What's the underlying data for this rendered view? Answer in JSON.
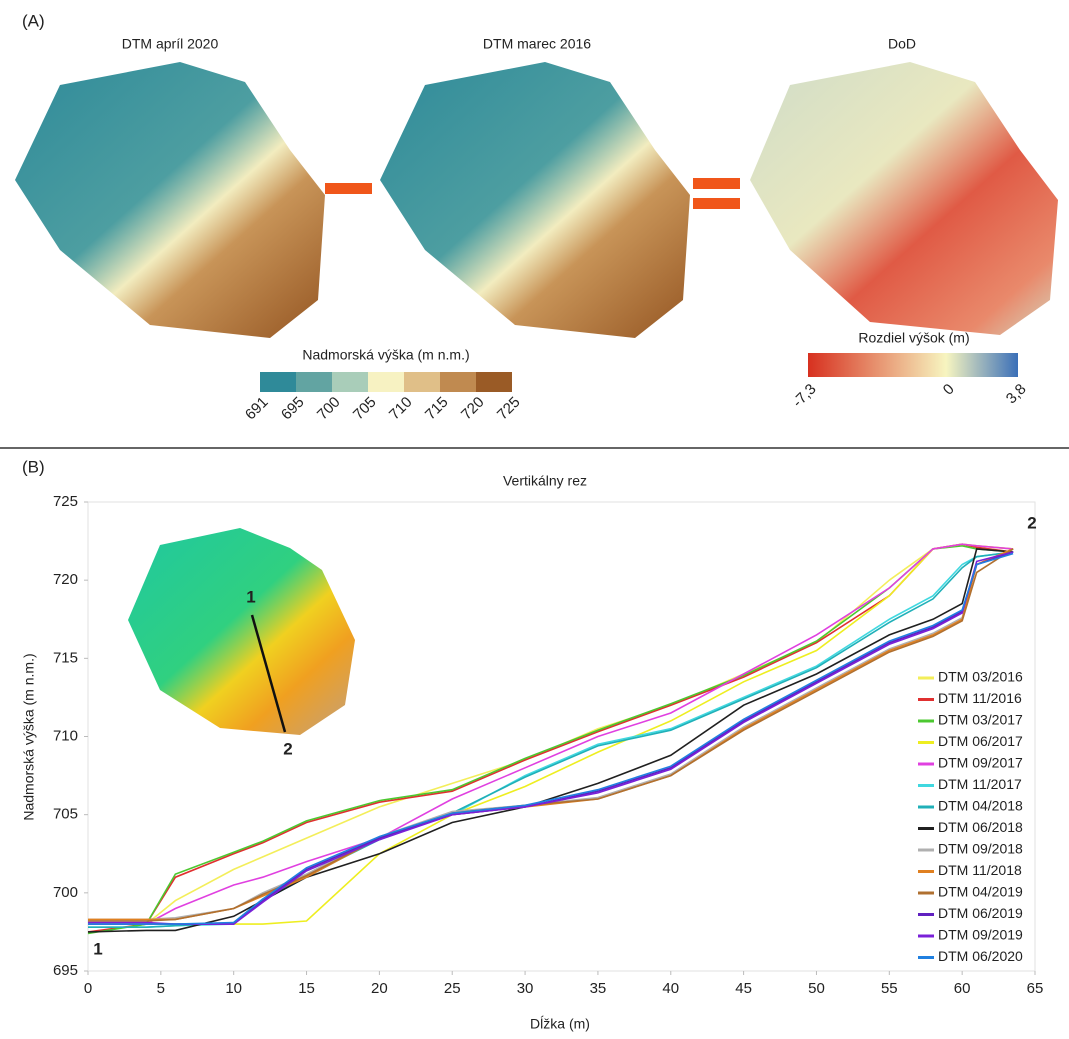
{
  "panel_a": {
    "label": "(A)",
    "maps": [
      "DTM apríl 2020",
      "DTM marec 2016",
      "DoD"
    ],
    "elevation_colorbar": {
      "title": "Nadmorská výška (m n.m.)",
      "colors": [
        "#2f8a99",
        "#62a4a2",
        "#a9cdb9",
        "#f7f2c2",
        "#e0bf88",
        "#c08a50",
        "#9a5b26"
      ],
      "ticks": [
        691,
        695,
        700,
        705,
        710,
        715,
        720,
        725
      ]
    },
    "difference_colorbar": {
      "title": "Rozdiel výšok (m)",
      "colors": [
        "#d7301f",
        "#f7f5c0",
        "#3a6fb8"
      ],
      "ticks": [
        {
          "value": -7.3,
          "label": "-7,3"
        },
        0,
        {
          "value": 3.8,
          "label": "3,8"
        }
      ]
    }
  },
  "panel_b": {
    "label": "(B)",
    "inset_labels": [
      "1",
      "2"
    ]
  },
  "chart_data": {
    "type": "line",
    "title": "Vertikálny rez",
    "x_label": "Dĺžka (m)",
    "y_label": "Nadmorská výška (m n.m.)",
    "xlim": [
      0,
      65
    ],
    "xticks": [
      0,
      5,
      10,
      15,
      20,
      25,
      30,
      35,
      40,
      45,
      50,
      55,
      60,
      65
    ],
    "ylim": [
      695,
      725
    ],
    "yticks": [
      695,
      700,
      705,
      710,
      715,
      720,
      725
    ],
    "annotations": [
      "1",
      "2"
    ],
    "x": [
      0,
      4,
      6,
      10,
      12,
      15,
      20,
      25,
      30,
      35,
      40,
      45,
      50,
      55,
      58,
      60,
      61,
      63.5
    ],
    "series": [
      {
        "name": "DTM 03/2016",
        "color": "#f3ee5a",
        "values": [
          698,
          698,
          699.5,
          701.5,
          702.3,
          703.5,
          705.5,
          707,
          708.5,
          710.5,
          712,
          714,
          716,
          720,
          722,
          722.3,
          722.2,
          722
        ]
      },
      {
        "name": "DTM 11/2016",
        "color": "#e03030",
        "values": [
          697.5,
          698,
          701,
          702.5,
          703.2,
          704.5,
          705.8,
          706.5,
          708.5,
          710.3,
          712,
          713.8,
          716,
          719,
          722,
          722.3,
          722.1,
          721.8
        ]
      },
      {
        "name": "DTM 03/2017",
        "color": "#4cc830",
        "values": [
          697.4,
          698,
          701.2,
          702.6,
          703.3,
          704.6,
          705.9,
          706.6,
          708.6,
          710.4,
          712.1,
          713.9,
          716.1,
          719.5,
          722,
          722.2,
          722,
          721.8
        ]
      },
      {
        "name": "DTM 06/2017",
        "color": "#eeee20",
        "values": [
          698,
          698,
          698,
          698,
          698,
          698.2,
          702.5,
          705,
          706.8,
          709,
          711,
          713.5,
          715.5,
          719,
          722,
          722.3,
          722.2,
          722
        ]
      },
      {
        "name": "DTM 09/2017",
        "color": "#e040e0",
        "values": [
          698,
          698,
          699,
          700.5,
          701,
          702,
          703.5,
          706,
          708,
          710,
          711.5,
          714,
          716.5,
          719.5,
          722,
          722.3,
          722.2,
          722
        ]
      },
      {
        "name": "DTM 11/2017",
        "color": "#40d8e0",
        "values": [
          697.8,
          697.8,
          697.9,
          698,
          699.5,
          701,
          703.5,
          705,
          707.5,
          709.5,
          710.5,
          712.5,
          714.5,
          717.5,
          719,
          721,
          721.5,
          721.8
        ]
      },
      {
        "name": "DTM 04/2018",
        "color": "#20b0b8",
        "values": [
          697.8,
          697.8,
          697.9,
          698.1,
          699.6,
          701.1,
          703.4,
          705.1,
          707.4,
          709.4,
          710.4,
          712.4,
          714.4,
          717.3,
          718.8,
          720.8,
          721.5,
          721.8
        ]
      },
      {
        "name": "DTM 06/2018",
        "color": "#202020",
        "values": [
          697.5,
          697.6,
          697.6,
          698.5,
          699.5,
          701,
          702.5,
          704.5,
          705.5,
          707,
          708.8,
          712,
          714,
          716.5,
          717.5,
          718.5,
          722,
          721.8
        ]
      },
      {
        "name": "DTM 09/2018",
        "color": "#b0b0b0",
        "values": [
          698.3,
          698.3,
          698.4,
          699,
          700,
          701.2,
          703.6,
          705.2,
          705.6,
          706.1,
          707.6,
          710.6,
          713.1,
          715.6,
          716.6,
          717.6,
          721,
          722
        ]
      },
      {
        "name": "DTM 11/2018",
        "color": "#e08020",
        "values": [
          698.3,
          698.3,
          698.3,
          699,
          699.8,
          701,
          703.5,
          705,
          705.5,
          706,
          707.5,
          710.5,
          713,
          715.5,
          716.5,
          717.5,
          721,
          722
        ]
      },
      {
        "name": "DTM 04/2019",
        "color": "#b07030",
        "values": [
          698.2,
          698.2,
          698.3,
          699,
          699.9,
          701.1,
          703.5,
          705.1,
          705.6,
          706,
          707.5,
          710.4,
          712.9,
          715.4,
          716.4,
          717.4,
          720.5,
          722
        ]
      },
      {
        "name": "DTM 06/2019",
        "color": "#6020c0",
        "values": [
          698,
          698,
          698,
          698,
          699.5,
          701.5,
          703.5,
          705,
          705.5,
          706.5,
          708,
          711,
          713.5,
          716,
          717,
          718,
          721,
          721.8
        ]
      },
      {
        "name": "DTM 09/2019",
        "color": "#7a20d8",
        "values": [
          698.1,
          698.1,
          698,
          698,
          699.4,
          701.4,
          703.4,
          705,
          705.5,
          706.4,
          707.9,
          710.9,
          713.4,
          715.9,
          716.9,
          717.9,
          721.2,
          721.8
        ]
      },
      {
        "name": "DTM 06/2020",
        "color": "#2080e0",
        "values": [
          698,
          698,
          698,
          698.1,
          699.6,
          701.6,
          703.6,
          705.1,
          705.6,
          706.6,
          708.1,
          711.1,
          713.6,
          716.1,
          717.1,
          718.1,
          721,
          721.7
        ]
      }
    ]
  }
}
